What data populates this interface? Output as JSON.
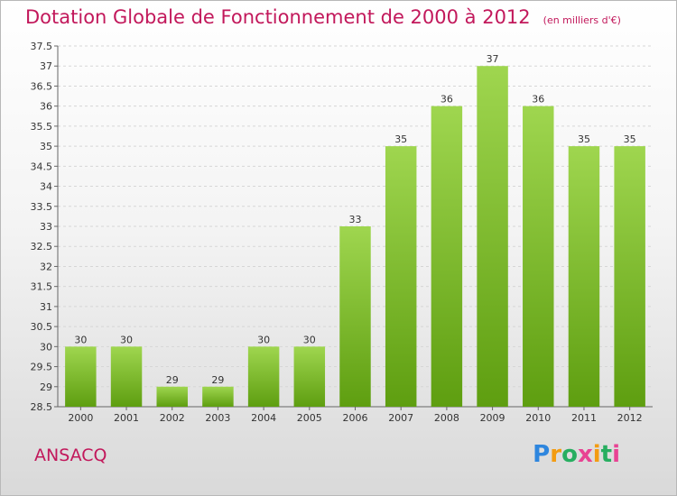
{
  "header": {
    "title": "Dotation Globale de Fonctionnement de 2000 à 2012",
    "subtitle": "(en milliers d'€)"
  },
  "commune": "ANSACQ",
  "brand": {
    "letters": [
      "P",
      "r",
      "o",
      "x",
      "i",
      "t",
      "i"
    ],
    "colors": [
      "#2e86de",
      "#f39c12",
      "#27ae60",
      "#e84393"
    ]
  },
  "chart_data": {
    "type": "bar",
    "categories": [
      "2000",
      "2001",
      "2002",
      "2003",
      "2004",
      "2005",
      "2006",
      "2007",
      "2008",
      "2009",
      "2010",
      "2011",
      "2012"
    ],
    "values": [
      30,
      30,
      29,
      29,
      30,
      30,
      33,
      35,
      36,
      37,
      36,
      35,
      35
    ],
    "ylim": [
      28.5,
      37.5
    ],
    "yticks": [
      "28.5",
      "29",
      "29.5",
      "30",
      "30.5",
      "31",
      "31.5",
      "32",
      "32.5",
      "33",
      "33.5",
      "34",
      "34.5",
      "35",
      "35.5",
      "36",
      "36.5",
      "37",
      "37.5"
    ],
    "bar_color": "#7dc22e",
    "grid": true
  }
}
